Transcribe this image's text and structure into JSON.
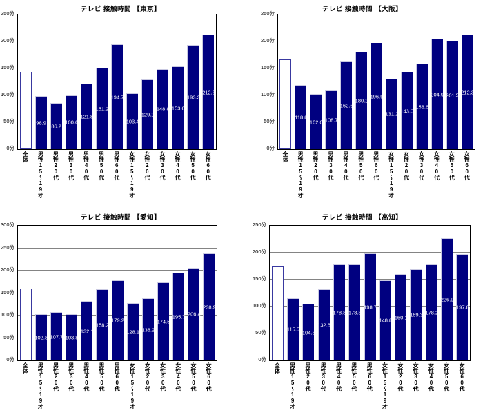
{
  "page": {
    "background": "#ffffff"
  },
  "colors": {
    "bar_fill": "#000080",
    "bar_highlight_edge": "#c9c9e2",
    "overall_bar_fill": "#ffffff",
    "overall_bar_border": "#3939a0",
    "gridline": "#848484",
    "plot_border": "#000000",
    "value_label_text": "#ffffff",
    "axis_text": "#000000"
  },
  "chart_data": [
    {
      "type": "bar",
      "title": "テレビ 接触時間 【東京】",
      "region": "東京",
      "unit": "分",
      "ylim": [
        0,
        250
      ],
      "ytick_step": 50,
      "yticks": [
        "0分",
        "50分",
        "100分",
        "150分",
        "200分",
        "250分"
      ],
      "grid": true,
      "legend": "none",
      "categories": [
        "全体",
        "男性15〜19才",
        "男性20代",
        "男性30代",
        "男性40代",
        "男性50代",
        "男性60代",
        "女性15〜19才",
        "女性20代",
        "女性30代",
        "女性40代",
        "女性50代",
        "女性60代"
      ],
      "values": [
        143.8,
        98.9,
        86.2,
        100.6,
        121.8,
        151.2,
        194.7,
        103.4,
        129.2,
        148.8,
        153.6,
        193.3,
        212.3
      ],
      "value_labels": [
        "",
        "98.9",
        "86.2",
        "100.6",
        "121.8",
        "151.2",
        "194.7",
        "103.4",
        "129.2",
        "148.8",
        "153.6",
        "193.3",
        "212.3"
      ]
    },
    {
      "type": "bar",
      "title": "テレビ 接触時間 【大阪】",
      "region": "大阪",
      "unit": "分",
      "ylim": [
        0,
        250
      ],
      "ytick_step": 50,
      "yticks": [
        "0分",
        "50分",
        "100分",
        "150分",
        "200分",
        "250分"
      ],
      "grid": true,
      "legend": "none",
      "categories": [
        "全体",
        "男性15〜19才",
        "男性20代",
        "男性30代",
        "男性40代",
        "男性50代",
        "男性60代",
        "女性15〜19才",
        "女性20代",
        "女性30代",
        "女性40代",
        "女性50代",
        "女性60代"
      ],
      "values": [
        166.8,
        118.8,
        102.0,
        108.7,
        162.6,
        180.2,
        196.9,
        131.2,
        143.0,
        158.6,
        204.9,
        201.5,
        212.3
      ],
      "value_labels": [
        "",
        "118.8",
        "102.0",
        "108.7",
        "162.6",
        "180.2",
        "196.9",
        "131.2",
        "143.0",
        "158.6",
        "204.9",
        "201.5",
        "212.3"
      ]
    },
    {
      "type": "bar",
      "title": "テレビ 接触時間 【愛知】",
      "region": "愛知",
      "unit": "分",
      "ylim": [
        0,
        300
      ],
      "ytick_step": 50,
      "yticks": [
        "0分",
        "50分",
        "100分",
        "150分",
        "200分",
        "250分",
        "300分"
      ],
      "grid": true,
      "legend": "none",
      "categories": [
        "全体",
        "男性15〜19才",
        "男性20代",
        "男性30代",
        "男性40代",
        "男性50代",
        "男性60代",
        "女性15〜19才",
        "女性20代",
        "女性30代",
        "女性40代",
        "女性50代",
        "女性60代"
      ],
      "values": [
        159.5,
        102.8,
        107.7,
        103.8,
        132.1,
        158.2,
        179.2,
        128.1,
        138.2,
        174.5,
        195.7,
        206.4,
        238.9
      ],
      "value_labels": [
        "",
        "102.8",
        "107.7",
        "103.8",
        "132.1",
        "158.2",
        "179.2",
        "128.1",
        "138.2",
        "174.5",
        "195.7",
        "206.4",
        "238.9"
      ]
    },
    {
      "type": "bar",
      "title": "テレビ 接触時間 【高知】",
      "region": "高知",
      "unit": "分",
      "ylim": [
        0,
        250
      ],
      "ytick_step": 50,
      "yticks": [
        "0分",
        "50分",
        "100分",
        "150分",
        "200分",
        "250分"
      ],
      "grid": true,
      "legend": "none",
      "categories": [
        "全体",
        "男性15〜19才",
        "男性20代",
        "男性30代",
        "男性40代",
        "男性50代",
        "男性60代",
        "女性15〜19才",
        "女性20代",
        "女性30代",
        "女性40代",
        "女性50代",
        "女性60代"
      ],
      "values": [
        174.5,
        115.5,
        104.8,
        132.6,
        178.8,
        178.8,
        198.7,
        148.8,
        160.1,
        169.3,
        178.2,
        226.9,
        197.8
      ],
      "value_labels": [
        "",
        "115.5",
        "104.8",
        "132.6",
        "178.8",
        "178.8",
        "198.7",
        "148.8",
        "160.1",
        "169.3",
        "178.2",
        "226.9",
        "197.8"
      ]
    }
  ]
}
